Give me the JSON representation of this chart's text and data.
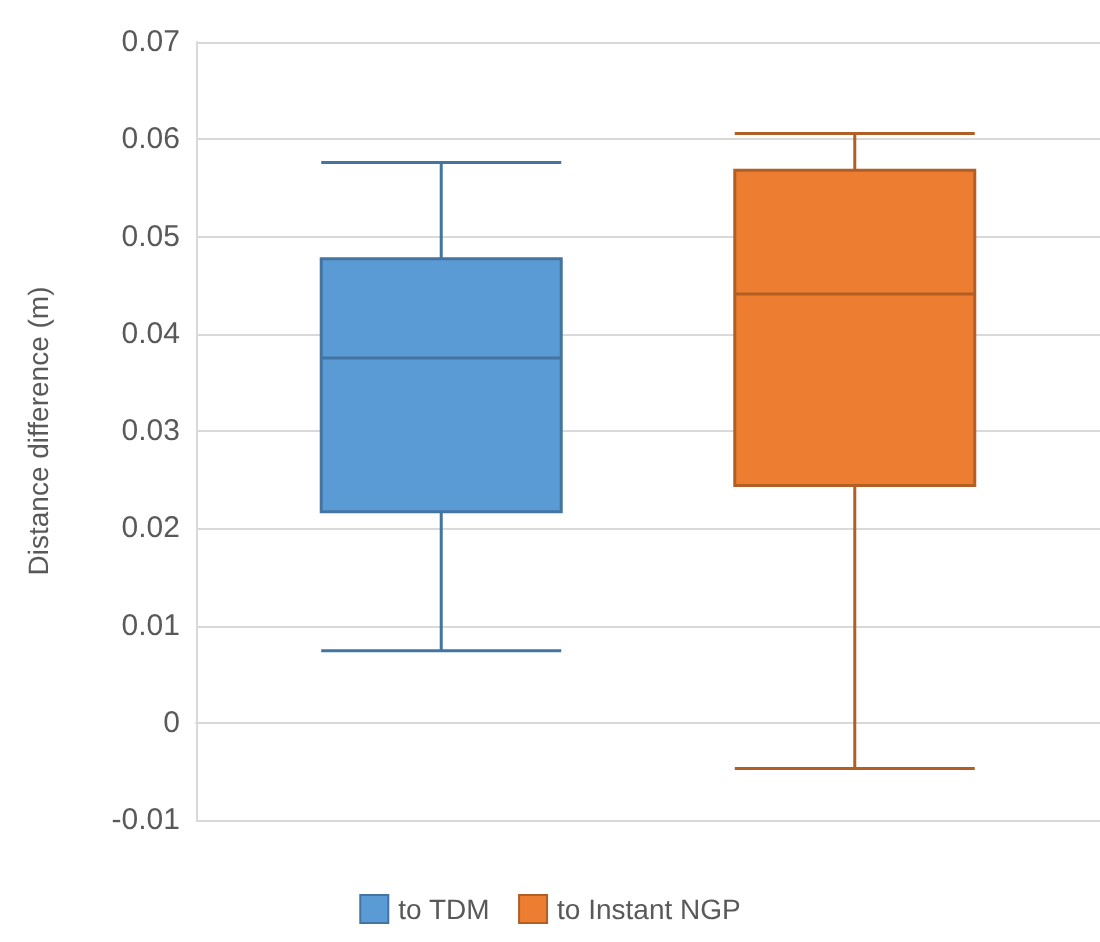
{
  "chart_data": {
    "type": "box",
    "ylabel": "Distance difference (m)",
    "categories": [
      null
    ],
    "series": [
      {
        "name": "to TDM",
        "color": "#5b9bd5",
        "boxes": [
          {
            "low": 0.0074,
            "q1": 0.0217,
            "median": 0.0375,
            "q3": 0.0477,
            "high": 0.0576
          }
        ]
      },
      {
        "name": "to Instant NGP",
        "color": "#ed7d31",
        "boxes": [
          {
            "low": -0.0047,
            "q1": 0.0244,
            "median": 0.0441,
            "q3": 0.0568,
            "high": 0.0606
          }
        ]
      }
    ],
    "ylim": [
      -0.01,
      0.07
    ],
    "yticks": [
      -0.01,
      0,
      0.01,
      0.02,
      0.03,
      0.04,
      0.05,
      0.06,
      0.07
    ],
    "grid": "y",
    "legend": "bottom"
  }
}
